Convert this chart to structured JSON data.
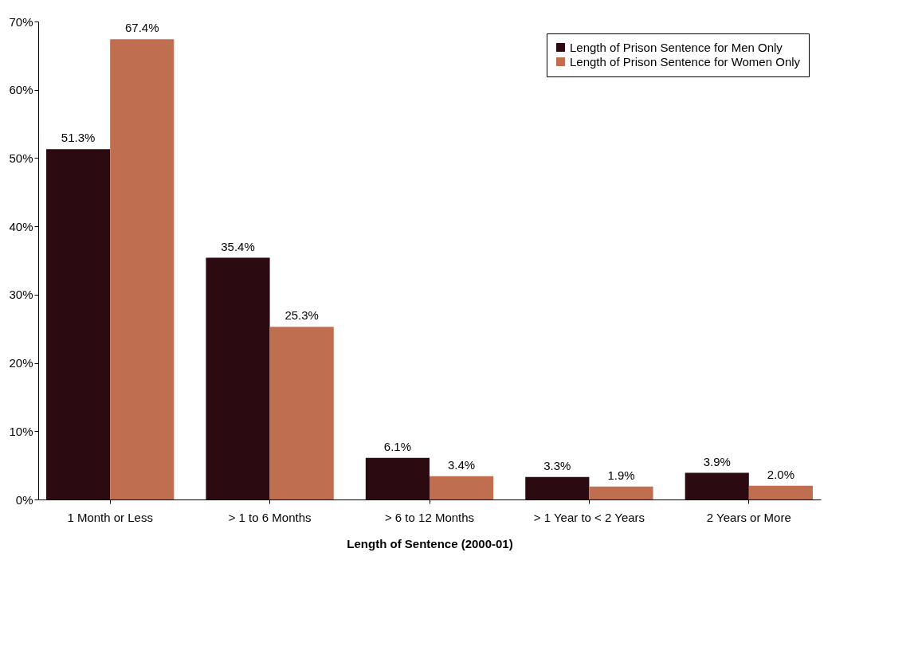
{
  "chart_data": {
    "type": "bar",
    "xlabel": "Length of Sentence (2000-01)",
    "categories": [
      "1 Month or Less",
      "> 1 to 6 Months",
      "> 6 to 12 Months",
      "> 1 Year to < 2 Years",
      "2 Years or More"
    ],
    "series": [
      {
        "name": "Length of Prison Sentence for Men Only",
        "color": "#2b0a12",
        "values": [
          51.3,
          35.4,
          6.1,
          3.3,
          3.9
        ],
        "value_labels": [
          "51.3%",
          "35.4%",
          "6.1%",
          "3.3%",
          "3.9%"
        ]
      },
      {
        "name": "Length of Prison Sentence for Women Only",
        "color": "#bf6f4f",
        "values": [
          67.4,
          25.3,
          3.4,
          1.9,
          2.0
        ],
        "value_labels": [
          "67.4%",
          "25.3%",
          "3.4%",
          "1.9%",
          "2.0%"
        ]
      }
    ],
    "ylim": [
      0,
      70
    ],
    "yticks": [
      {
        "value": 0,
        "label": "0%"
      },
      {
        "value": 10,
        "label": "10%"
      },
      {
        "value": 20,
        "label": "20%"
      },
      {
        "value": 30,
        "label": "30%"
      },
      {
        "value": 40,
        "label": "40%"
      },
      {
        "value": 50,
        "label": "50%"
      },
      {
        "value": 60,
        "label": "60%"
      },
      {
        "value": 70,
        "label": "70%"
      }
    ],
    "legend": "top right",
    "grid": false
  }
}
